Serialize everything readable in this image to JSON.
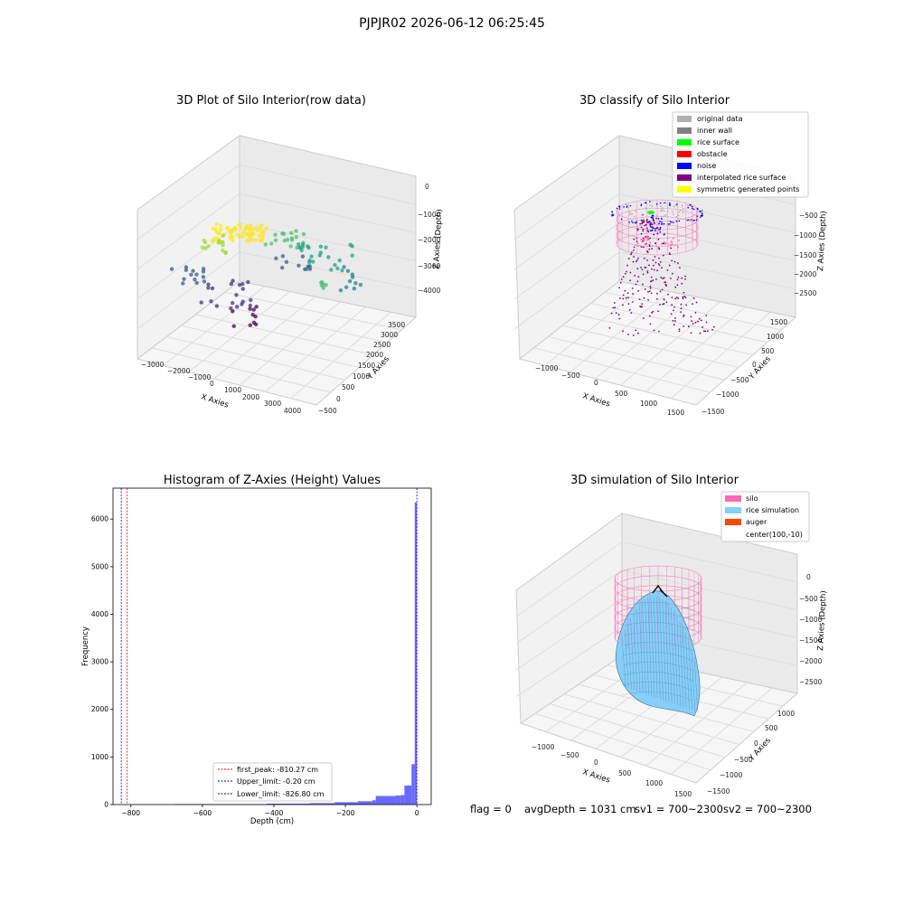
{
  "suptitle": "PJPJR02 2026-06-12 06:25:45",
  "footer": {
    "flag": "flag = 0",
    "avg": "avgDepth = 1031 cm",
    "sv1": "sv1 = 700~2300",
    "sv2": "sv2 = 700~2300"
  },
  "colors": {
    "original": "#b0b0b0",
    "inner_wall": "#808080",
    "rice_surface": "#00ff00",
    "obstacle": "#ff0000",
    "noise": "#0000ff",
    "interpolated": "#800080",
    "symmetric": "#ffff00",
    "silo": "#ff69b4",
    "rice_sim": "#87cefa",
    "auger": "#ff4500",
    "hist_bar": "#5050ff"
  },
  "chart_data": [
    {
      "type": "scatter",
      "title": "3D Plot of Silo Interior(row data)",
      "xlabel": "X Axies",
      "ylabel": "Y Axies",
      "zlabel": "Z Axies (Depth)",
      "x_ticks": [
        "−3000",
        "−2000",
        "−1000",
        "0",
        "1000",
        "2000",
        "3000",
        "4000"
      ],
      "y_ticks": [
        "−500",
        "0",
        "500",
        "1000",
        "1500",
        "2000",
        "2500",
        "3000",
        "3500"
      ],
      "z_ticks": [
        "0",
        "−1000",
        "−2000",
        "−3000",
        "−4000"
      ],
      "colormap": "viridis"
    },
    {
      "type": "scatter",
      "title": "3D classify of Silo Interior",
      "xlabel": "X Axies",
      "ylabel": "Y Axies",
      "zlabel": "Z Axies (Depth)",
      "x_ticks": [
        "−1000",
        "−500",
        "0",
        "500",
        "1000",
        "1500"
      ],
      "y_ticks": [
        "−1500",
        "−1000",
        "−500",
        "0",
        "500",
        "1000",
        "1500"
      ],
      "z_ticks": [
        "−500",
        "−1000",
        "−1500",
        "−2000",
        "−2500"
      ],
      "legend": [
        "original data",
        "inner wall",
        "rice surface",
        "obstacle",
        "noise",
        "interpolated rice surface",
        "symmetric generated points"
      ]
    },
    {
      "type": "bar",
      "title": "Histogram of Z-Axies (Height) Values",
      "xlabel": "Depth (cm)",
      "ylabel": "Frequency",
      "xlim": [
        -850,
        40
      ],
      "ylim": [
        0,
        6650
      ],
      "x_ticks": [
        -800,
        -600,
        -400,
        -200,
        0
      ],
      "y_ticks": [
        0,
        1000,
        2000,
        3000,
        4000,
        5000,
        6000
      ],
      "bins": [
        {
          "x0": -680,
          "x1": -420,
          "value": 10
        },
        {
          "x0": -420,
          "x1": -300,
          "value": 20
        },
        {
          "x0": -300,
          "x1": -230,
          "value": 30
        },
        {
          "x0": -230,
          "x1": -165,
          "value": 50
        },
        {
          "x0": -165,
          "x1": -125,
          "value": 70
        },
        {
          "x0": -125,
          "x1": -115,
          "value": 90
        },
        {
          "x0": -115,
          "x1": -60,
          "value": 180
        },
        {
          "x0": -60,
          "x1": -45,
          "value": 190
        },
        {
          "x0": -45,
          "x1": -35,
          "value": 200
        },
        {
          "x0": -35,
          "x1": -15,
          "value": 400
        },
        {
          "x0": -15,
          "x1": -6,
          "value": 850
        },
        {
          "x0": -6,
          "x1": 0,
          "value": 6350
        }
      ],
      "lines": [
        {
          "label": "first_peak: -810.27 cm",
          "x": -810.27,
          "color": "#ff0000"
        },
        {
          "label": "Upper_limit: -0.20 cm",
          "x": -0.2,
          "color": "#0000cc"
        },
        {
          "label": "Lower_limit: -826.80 cm",
          "x": -826.8,
          "color": "#0000cc"
        }
      ]
    },
    {
      "type": "area",
      "title": "3D simulation of Silo Interior",
      "xlabel": "X Axies",
      "ylabel": "Y Axies",
      "zlabel": "Z Axies (Depth)",
      "x_ticks": [
        "−1000",
        "−500",
        "0",
        "500",
        "1000",
        "1500"
      ],
      "y_ticks": [
        "−1500",
        "−1000",
        "−500",
        "0",
        "500",
        "1000"
      ],
      "z_ticks": [
        "0",
        "−500",
        "−1000",
        "−1500",
        "−2000",
        "−2500"
      ],
      "legend": [
        "silo",
        "rice simulation",
        "auger",
        "center(100,-10)"
      ]
    }
  ]
}
